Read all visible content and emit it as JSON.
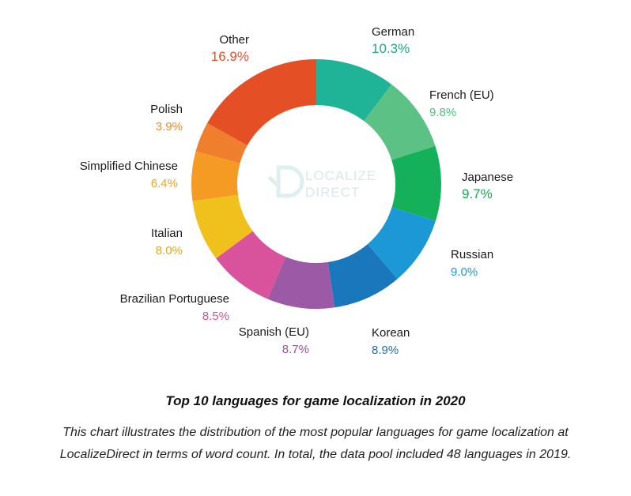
{
  "chart_data": {
    "type": "pie",
    "categories": [
      "German",
      "French (EU)",
      "Japanese",
      "Russian",
      "Korean",
      "Spanish (EU)",
      "Brazilian Portuguese",
      "Italian",
      "Simplified Chinese",
      "Polish",
      "Other"
    ],
    "values": [
      10.3,
      9.8,
      9.7,
      9.0,
      8.9,
      8.7,
      8.5,
      8.0,
      6.4,
      3.9,
      16.9
    ],
    "value_labels": [
      "10.3%",
      "9.8%",
      "9.7%",
      "9.0%",
      "8.9%",
      "8.7%",
      "8.5%",
      "8.0%",
      "6.4%",
      "3.9%",
      "16.9%"
    ],
    "colors": [
      "#1fb398",
      "#5cc185",
      "#15b05a",
      "#1c98d6",
      "#1a77bb",
      "#9b59a6",
      "#d9529c",
      "#f0c01c",
      "#f59a23",
      "#ef7f2c",
      "#e44f26"
    ],
    "label_colors": [
      "#1fa98c",
      "#4fc07a",
      "#18a951",
      "#1c98d6",
      "#1a6fae",
      "#9b4fa0",
      "#d9529c",
      "#d9ab14",
      "#eea42a",
      "#ef8a2c",
      "#e4532c"
    ],
    "style": "donut",
    "title": "",
    "legend": "none"
  },
  "watermark": {
    "brand_line1": "LOCALIZE",
    "brand_line2": "DIRECT"
  },
  "caption": {
    "title": "Top 10 languages for game localization in 2020",
    "text": "This chart illustrates the distribution of the most popular languages for game localization at LocalizeDirect in terms of word count. In total, the data pool included 48 languages in 2019."
  }
}
